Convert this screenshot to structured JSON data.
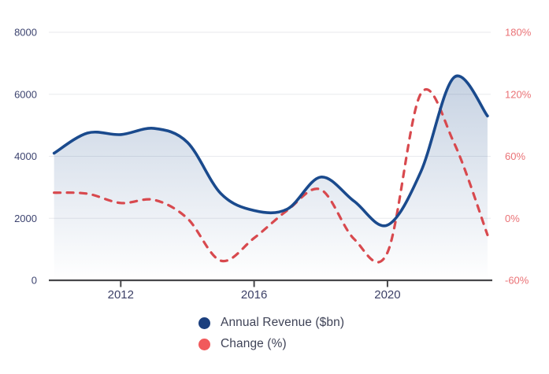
{
  "chart_data": {
    "type": "line",
    "title": "",
    "x": [
      2010,
      2011,
      2012,
      2013,
      2014,
      2015,
      2016,
      2017,
      2018,
      2019,
      2020,
      2021,
      2022,
      2023
    ],
    "x_tick_labels": [
      "2012",
      "2016",
      "2020"
    ],
    "x_tick_values": [
      2012,
      2016,
      2020
    ],
    "series": [
      {
        "name": "Annual Revenue ($bn)",
        "axis": "left",
        "style": "solid-with-area-fill",
        "color": "#1a4a8d",
        "values": [
          4100,
          4750,
          4700,
          4900,
          4450,
          2800,
          2250,
          2300,
          3330,
          2550,
          1780,
          3500,
          6550,
          5300
        ]
      },
      {
        "name": "Change (%)",
        "axis": "right",
        "style": "dashed",
        "color": "#d8494e",
        "values": [
          25,
          24,
          15,
          18,
          0,
          -41,
          -19,
          8,
          28,
          -20,
          -33,
          121,
          73,
          -16
        ]
      }
    ],
    "left_axis": {
      "ticks": [
        0,
        2000,
        4000,
        6000,
        8000
      ],
      "labels": [
        "0",
        "2000",
        "4000",
        "6000",
        "8000"
      ],
      "range": [
        0,
        8000
      ],
      "label_color": "#3d4470"
    },
    "right_axis": {
      "ticks": [
        -60,
        0,
        60,
        120,
        180
      ],
      "labels": [
        "-60%",
        "0%",
        "60%",
        "120%",
        "180%"
      ],
      "range": [
        -60,
        180
      ],
      "label_color": "#ea7276"
    },
    "grid": true,
    "legend_position": "bottom",
    "legend": [
      {
        "label": "Annual Revenue ($bn)",
        "color": "#1b3f7e"
      },
      {
        "label": "Change (%)",
        "color": "#f15a5c"
      }
    ]
  },
  "colors": {
    "revenue_line": "#1a4a8d",
    "revenue_area_top": "rgba(27,74,139,0.30)",
    "revenue_area_bottom": "rgba(27,74,139,0)",
    "change_line": "#d8494e",
    "gridline": "#e9eaee",
    "axis_line": "#47474a",
    "x_label_color": "#3b3f66",
    "background": "#ffffff"
  }
}
